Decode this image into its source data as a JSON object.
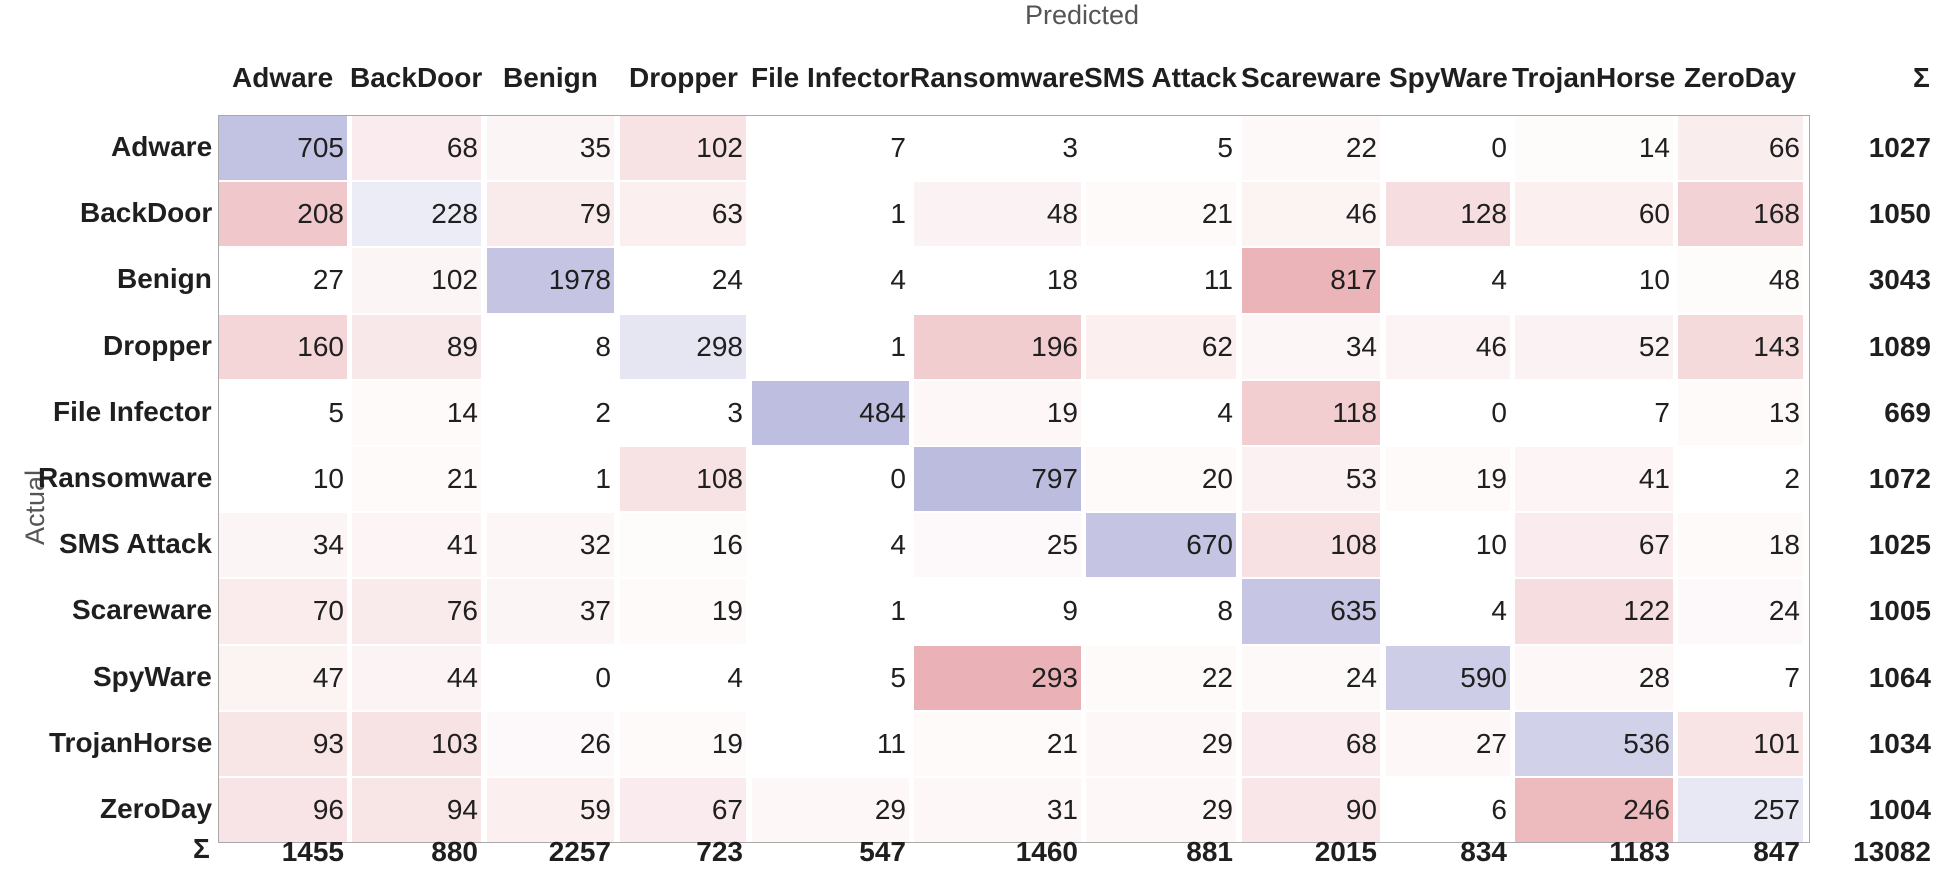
{
  "chart_data": {
    "type": "heatmap",
    "xlabel": "Predicted",
    "ylabel": "Actual",
    "total_symbol": "Σ",
    "predicted_labels": [
      "Adware",
      "BackDoor",
      "Benign",
      "Dropper",
      "File Infector",
      "Ransomware",
      "SMS Attack",
      "Scareware",
      "SpyWare",
      "TrojanHorse",
      "ZeroDay"
    ],
    "actual_labels": [
      "Adware",
      "BackDoor",
      "Benign",
      "Dropper",
      "File Infector",
      "Ransomware",
      "SMS Attack",
      "Scareware",
      "SpyWare",
      "TrojanHorse",
      "ZeroDay"
    ],
    "matrix": [
      [
        705,
        68,
        35,
        102,
        7,
        3,
        5,
        22,
        0,
        14,
        66
      ],
      [
        208,
        228,
        79,
        63,
        1,
        48,
        21,
        46,
        128,
        60,
        168
      ],
      [
        27,
        102,
        1978,
        24,
        4,
        18,
        11,
        817,
        4,
        10,
        48
      ],
      [
        160,
        89,
        8,
        298,
        1,
        196,
        62,
        34,
        46,
        52,
        143
      ],
      [
        5,
        14,
        2,
        3,
        484,
        19,
        4,
        118,
        0,
        7,
        13
      ],
      [
        10,
        21,
        1,
        108,
        0,
        797,
        20,
        53,
        19,
        41,
        2
      ],
      [
        34,
        41,
        32,
        16,
        4,
        25,
        670,
        108,
        10,
        67,
        18
      ],
      [
        70,
        76,
        37,
        19,
        1,
        9,
        8,
        635,
        4,
        122,
        24
      ],
      [
        47,
        44,
        0,
        4,
        5,
        293,
        22,
        24,
        590,
        28,
        7
      ],
      [
        93,
        103,
        26,
        19,
        11,
        21,
        29,
        68,
        27,
        536,
        101
      ],
      [
        96,
        94,
        59,
        67,
        29,
        31,
        29,
        90,
        6,
        246,
        257
      ]
    ],
    "row_totals": [
      1027,
      1050,
      3043,
      1089,
      669,
      1072,
      1025,
      1005,
      1064,
      1034,
      1004
    ],
    "column_totals": [
      1455,
      880,
      2257,
      723,
      547,
      1460,
      881,
      2015,
      834,
      1183,
      847
    ],
    "grand_total": 13082,
    "colors": {
      "correct": "#6a6ab8",
      "error": "#d0505a"
    },
    "grid": false
  }
}
